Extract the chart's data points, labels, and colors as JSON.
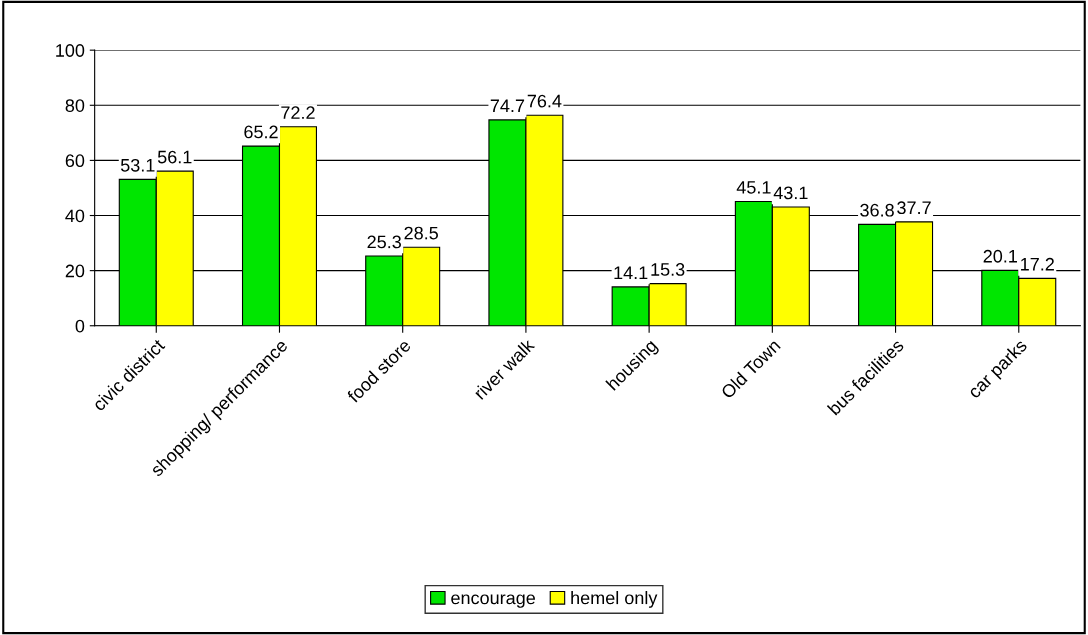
{
  "chart_data": {
    "type": "bar",
    "categories": [
      "civic district",
      "shopping/ performance",
      "food store",
      "river walk",
      "housing",
      "Old Town",
      "bus facilities",
      "car parks"
    ],
    "series": [
      {
        "name": "encourage",
        "color": "#00e600",
        "values": [
          53.1,
          65.2,
          25.3,
          74.7,
          14.1,
          45.1,
          36.8,
          20.1
        ]
      },
      {
        "name": "hemel only",
        "color": "#ffff00",
        "values": [
          56.1,
          72.2,
          28.5,
          76.4,
          15.3,
          43.1,
          37.7,
          17.2
        ]
      }
    ],
    "ylim": [
      0,
      100
    ],
    "yticks": [
      0,
      20,
      40,
      60,
      80,
      100
    ],
    "grid": "y",
    "legend": "bottom",
    "data_labels": true
  }
}
